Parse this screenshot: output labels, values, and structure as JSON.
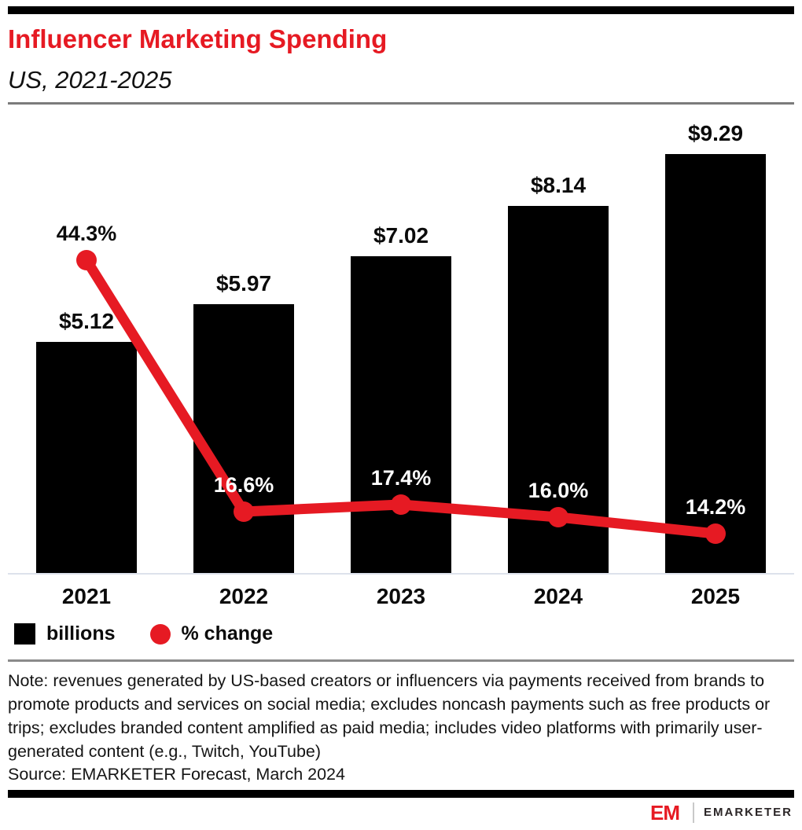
{
  "header": {
    "title": "Influencer Marketing Spending",
    "subtitle": "US, 2021-2025"
  },
  "chart_data": {
    "type": "bar",
    "title": "Influencer Marketing Spending",
    "subtitle": "US, 2021-2025",
    "categories": [
      "2021",
      "2022",
      "2023",
      "2024",
      "2025"
    ],
    "series": [
      {
        "name": "billions",
        "type": "bar",
        "color": "#000000",
        "values": [
          5.12,
          5.97,
          7.02,
          8.14,
          9.29
        ],
        "labels": [
          "$5.12",
          "$5.97",
          "$7.02",
          "$8.14",
          "$9.29"
        ]
      },
      {
        "name": "% change",
        "type": "line",
        "color": "#e61a23",
        "values": [
          44.3,
          16.6,
          17.4,
          16.0,
          14.2
        ],
        "labels": [
          "44.3%",
          "16.6%",
          "17.4%",
          "16.0%",
          "14.2%"
        ]
      }
    ],
    "xlabel": "",
    "ylabel": "",
    "grid": false,
    "legend_position": "bottom"
  },
  "legend": {
    "items": [
      {
        "label": "billions",
        "swatch": "square",
        "color": "#000000"
      },
      {
        "label": "% change",
        "swatch": "circle",
        "color": "#e61a23"
      }
    ]
  },
  "note": "Note: revenues generated by US-based creators or influencers via payments received from brands to promote products and services on social media; excludes noncash payments such as free products or trips; excludes branded content amplified as paid media; includes video platforms with primarily user-generated content (e.g., Twitch, YouTube)",
  "source": "Source: EMARKETER Forecast, March 2024",
  "footer": {
    "brand": "EMARKETER",
    "logo_mark": "EM"
  },
  "colors": {
    "accent_red": "#e61a23",
    "bar_black": "#000000",
    "axis_line": "#dde2ec"
  }
}
